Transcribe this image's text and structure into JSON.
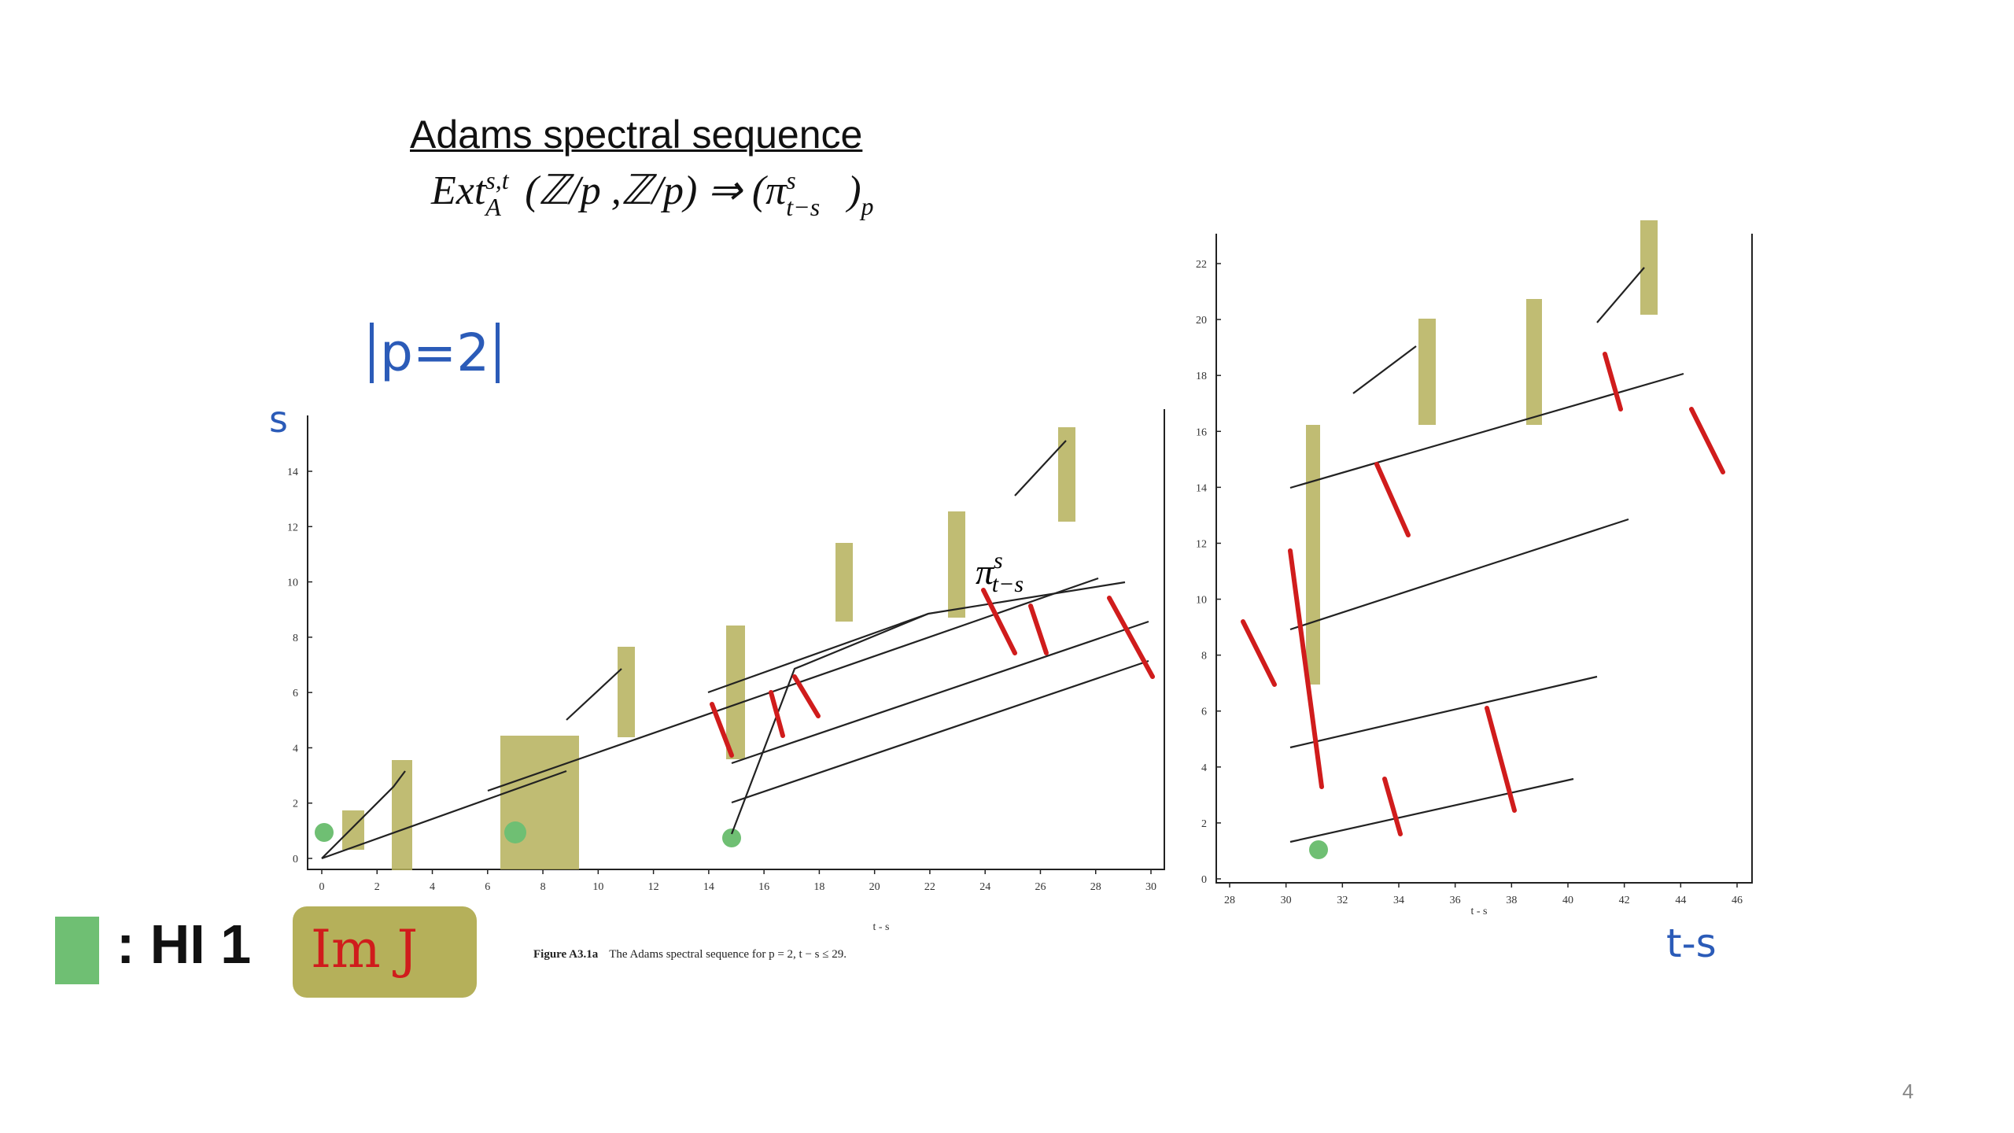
{
  "title": "Adams spectral sequence",
  "formula": {
    "ext": "Ext",
    "sup": "s,t",
    "sub": "A",
    "middle": "(ℤ/p ,ℤ/p) ⇒ (π",
    "pi_sup": "s",
    "pi_sub": "t−s",
    "close": ")",
    "p": "p"
  },
  "annotations": {
    "p_note": "p=2",
    "s_axis": "s",
    "ts_axis": "t-s",
    "legend_hi": ": HI 1",
    "legend_imj": "Im J",
    "pi_overlay": "π",
    "pi_overlay_sup": "s",
    "pi_overlay_sub": "t−s"
  },
  "left_chart": {
    "x_ticks": [
      "0",
      "2",
      "4",
      "6",
      "8",
      "10",
      "12",
      "14",
      "16",
      "18",
      "20",
      "22",
      "24",
      "26",
      "28",
      "30"
    ],
    "y_ticks": [
      "0",
      "2",
      "4",
      "6",
      "8",
      "10",
      "12",
      "14"
    ],
    "x_label": "t - s",
    "caption_label": "Figure A3.1a",
    "caption": "The Adams spectral sequence for p = 2, t − s ≤ 29."
  },
  "right_chart": {
    "x_ticks": [
      "28",
      "30",
      "32",
      "34",
      "36",
      "38",
      "40",
      "42",
      "44",
      "46"
    ],
    "y_ticks": [
      "0",
      "2",
      "4",
      "6",
      "8",
      "10",
      "12",
      "14",
      "16",
      "18",
      "20",
      "22"
    ],
    "x_label": "t - s"
  },
  "page_number": "4"
}
